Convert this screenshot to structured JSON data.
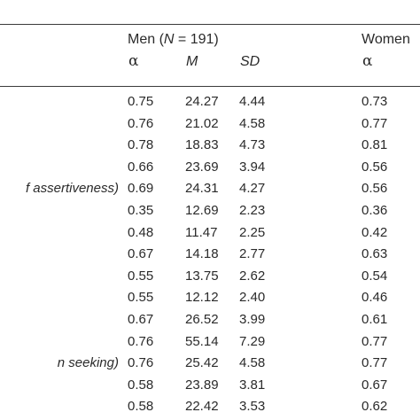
{
  "header": {
    "men_label": "Men (",
    "men_n_symbol": "N",
    "men_n_value": " = 191)",
    "women_label": "Women",
    "cols": {
      "alpha_men": "α",
      "mean_men": "M",
      "sd_men": "SD",
      "alpha_women": "α"
    }
  },
  "rows": [
    {
      "label": "",
      "alpha_men": "0.75",
      "mean": "24.27",
      "sd": "4.44",
      "alpha_women": "0.73"
    },
    {
      "label": "",
      "alpha_men": "0.76",
      "mean": "21.02",
      "sd": "4.58",
      "alpha_women": "0.77"
    },
    {
      "label": "",
      "alpha_men": "0.78",
      "mean": "18.83",
      "sd": "4.73",
      "alpha_women": "0.81"
    },
    {
      "label": "",
      "alpha_men": "0.66",
      "mean": "23.69",
      "sd": "3.94",
      "alpha_women": "0.56"
    },
    {
      "label": "f assertiveness)",
      "alpha_men": "0.69",
      "mean": "24.31",
      "sd": "4.27",
      "alpha_women": "0.56"
    },
    {
      "label": "",
      "alpha_men": "0.35",
      "mean": "12.69",
      "sd": "2.23",
      "alpha_women": "0.36"
    },
    {
      "label": "",
      "alpha_men": "0.48",
      "mean": "11.47",
      "sd": "2.25",
      "alpha_women": "0.42"
    },
    {
      "label": "",
      "alpha_men": "0.67",
      "mean": "14.18",
      "sd": "2.77",
      "alpha_women": "0.63"
    },
    {
      "label": "",
      "alpha_men": "0.55",
      "mean": "13.75",
      "sd": "2.62",
      "alpha_women": "0.54"
    },
    {
      "label": "",
      "alpha_men": "0.55",
      "mean": "12.12",
      "sd": "2.40",
      "alpha_women": "0.46"
    },
    {
      "label": "",
      "alpha_men": "0.67",
      "mean": "26.52",
      "sd": "3.99",
      "alpha_women": "0.61"
    },
    {
      "label": "",
      "alpha_men": "0.76",
      "mean": "55.14",
      "sd": "7.29",
      "alpha_women": "0.77"
    },
    {
      "label": "n seeking)",
      "alpha_men": "0.76",
      "mean": "25.42",
      "sd": "4.58",
      "alpha_women": "0.77"
    },
    {
      "label": "",
      "alpha_men": "0.58",
      "mean": "23.89",
      "sd": "3.81",
      "alpha_women": "0.67"
    },
    {
      "label": "",
      "alpha_men": "0.58",
      "mean": "22.42",
      "sd": "3.53",
      "alpha_women": "0.62"
    }
  ]
}
